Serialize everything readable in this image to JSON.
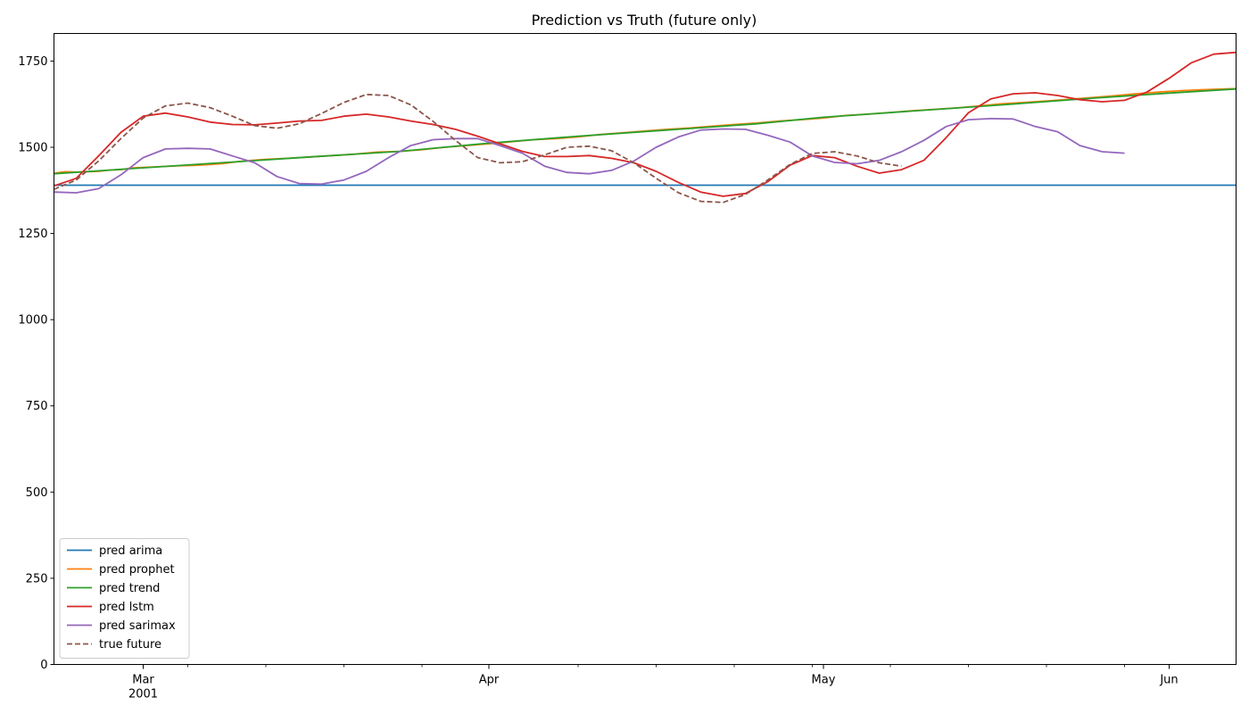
{
  "chart_data": {
    "type": "line",
    "title": "Prediction vs Truth (future only)",
    "xlabel": "",
    "ylabel": "",
    "x_range": [
      "2001-02-21",
      "2001-06-07"
    ],
    "ylim": [
      0,
      1830
    ],
    "y_ticks": [
      0,
      250,
      500,
      750,
      1000,
      1250,
      1500,
      1750
    ],
    "x_major_ticks": [
      {
        "date": "2001-03-01",
        "label": "Mar",
        "sublabel": "2001"
      },
      {
        "date": "2001-04-01",
        "label": "Apr",
        "sublabel": ""
      },
      {
        "date": "2001-05-01",
        "label": "May",
        "sublabel": ""
      },
      {
        "date": "2001-06-01",
        "label": "Jun",
        "sublabel": ""
      }
    ],
    "x_minor_ticks": [
      "2001-03-05",
      "2001-03-12",
      "2001-03-19",
      "2001-03-26",
      "2001-04-09",
      "2001-04-16",
      "2001-04-23",
      "2001-04-30",
      "2001-05-07",
      "2001-05-14",
      "2001-05-21",
      "2001-05-28"
    ],
    "grid": false,
    "legend_position": "lower-left",
    "series": [
      {
        "name": "pred arima",
        "color": "#1f77b4",
        "dashed": false,
        "points": [
          [
            "2001-02-21",
            1390
          ],
          [
            "2001-06-07",
            1390
          ]
        ]
      },
      {
        "name": "pred prophet",
        "color": "#ff7f0e",
        "dashed": false,
        "points": [
          [
            "2001-02-21",
            1425
          ],
          [
            "2001-02-22",
            1429
          ],
          [
            "2001-02-23",
            1428
          ],
          [
            "2001-02-25",
            1430
          ],
          [
            "2001-02-26",
            1434
          ],
          [
            "2001-02-27",
            1435
          ],
          [
            "2001-02-28",
            1440
          ],
          [
            "2001-03-02",
            1443
          ],
          [
            "2001-03-04",
            1446
          ],
          [
            "2001-03-06",
            1448
          ],
          [
            "2001-03-08",
            1452
          ],
          [
            "2001-03-10",
            1460
          ],
          [
            "2001-03-12",
            1465
          ],
          [
            "2001-03-14",
            1468
          ],
          [
            "2001-03-16",
            1472
          ],
          [
            "2001-03-18",
            1476
          ],
          [
            "2001-03-20",
            1480
          ],
          [
            "2001-03-22",
            1486
          ],
          [
            "2001-03-24",
            1488
          ],
          [
            "2001-03-26",
            1493
          ],
          [
            "2001-03-28",
            1500
          ],
          [
            "2001-03-30",
            1505
          ],
          [
            "2001-04-01",
            1510
          ],
          [
            "2001-04-03",
            1516
          ],
          [
            "2001-04-05",
            1522
          ],
          [
            "2001-04-07",
            1525
          ],
          [
            "2001-04-09",
            1530
          ],
          [
            "2001-04-11",
            1537
          ],
          [
            "2001-04-13",
            1542
          ],
          [
            "2001-04-15",
            1547
          ],
          [
            "2001-04-17",
            1552
          ],
          [
            "2001-04-19",
            1556
          ],
          [
            "2001-04-21",
            1561
          ],
          [
            "2001-04-23",
            1566
          ],
          [
            "2001-04-25",
            1570
          ],
          [
            "2001-04-27",
            1576
          ],
          [
            "2001-04-29",
            1580
          ],
          [
            "2001-05-01",
            1585
          ],
          [
            "2001-05-03",
            1592
          ],
          [
            "2001-05-05",
            1596
          ],
          [
            "2001-05-07",
            1601
          ],
          [
            "2001-05-09",
            1606
          ],
          [
            "2001-05-11",
            1610
          ],
          [
            "2001-05-13",
            1614
          ],
          [
            "2001-05-15",
            1620
          ],
          [
            "2001-05-17",
            1626
          ],
          [
            "2001-05-19",
            1630
          ],
          [
            "2001-05-21",
            1634
          ],
          [
            "2001-05-23",
            1639
          ],
          [
            "2001-05-25",
            1644
          ],
          [
            "2001-05-27",
            1649
          ],
          [
            "2001-05-29",
            1655
          ],
          [
            "2001-05-31",
            1660
          ],
          [
            "2001-06-02",
            1664
          ],
          [
            "2001-06-04",
            1667
          ],
          [
            "2001-06-07",
            1670
          ]
        ]
      },
      {
        "name": "pred trend",
        "color": "#2ca02c",
        "dashed": false,
        "points": [
          [
            "2001-02-21",
            1423
          ],
          [
            "2001-02-28",
            1438
          ],
          [
            "2001-03-08",
            1455
          ],
          [
            "2001-03-16",
            1472
          ],
          [
            "2001-03-24",
            1488
          ],
          [
            "2001-04-01",
            1512
          ],
          [
            "2001-04-09",
            1532
          ],
          [
            "2001-04-17",
            1550
          ],
          [
            "2001-04-25",
            1568
          ],
          [
            "2001-05-01",
            1587
          ],
          [
            "2001-05-09",
            1605
          ],
          [
            "2001-05-17",
            1623
          ],
          [
            "2001-05-25",
            1642
          ],
          [
            "2001-06-01",
            1657
          ],
          [
            "2001-06-07",
            1669
          ]
        ]
      },
      {
        "name": "pred lstm",
        "color": "#d62728",
        "dashed": false,
        "points": [
          [
            "2001-02-21",
            1388
          ],
          [
            "2001-02-23",
            1410
          ],
          [
            "2001-02-25",
            1475
          ],
          [
            "2001-02-27",
            1543
          ],
          [
            "2001-03-01",
            1590
          ],
          [
            "2001-03-03",
            1599
          ],
          [
            "2001-03-05",
            1588
          ],
          [
            "2001-03-07",
            1573
          ],
          [
            "2001-03-09",
            1566
          ],
          [
            "2001-03-11",
            1565
          ],
          [
            "2001-03-13",
            1570
          ],
          [
            "2001-03-15",
            1576
          ],
          [
            "2001-03-17",
            1578
          ],
          [
            "2001-03-19",
            1590
          ],
          [
            "2001-03-21",
            1596
          ],
          [
            "2001-03-23",
            1588
          ],
          [
            "2001-03-25",
            1576
          ],
          [
            "2001-03-27",
            1566
          ],
          [
            "2001-03-29",
            1552
          ],
          [
            "2001-03-31",
            1532
          ],
          [
            "2001-04-02",
            1510
          ],
          [
            "2001-04-04",
            1488
          ],
          [
            "2001-04-06",
            1473
          ],
          [
            "2001-04-08",
            1473
          ],
          [
            "2001-04-10",
            1476
          ],
          [
            "2001-04-12",
            1468
          ],
          [
            "2001-04-14",
            1455
          ],
          [
            "2001-04-16",
            1430
          ],
          [
            "2001-04-18",
            1398
          ],
          [
            "2001-04-20",
            1370
          ],
          [
            "2001-04-22",
            1358
          ],
          [
            "2001-04-24",
            1366
          ],
          [
            "2001-04-26",
            1400
          ],
          [
            "2001-04-28",
            1448
          ],
          [
            "2001-04-30",
            1476
          ],
          [
            "2001-05-02",
            1470
          ],
          [
            "2001-05-04",
            1445
          ],
          [
            "2001-05-06",
            1425
          ],
          [
            "2001-05-08",
            1435
          ],
          [
            "2001-05-10",
            1462
          ],
          [
            "2001-05-12",
            1528
          ],
          [
            "2001-05-14",
            1600
          ],
          [
            "2001-05-16",
            1640
          ],
          [
            "2001-05-18",
            1655
          ],
          [
            "2001-05-20",
            1658
          ],
          [
            "2001-05-22",
            1650
          ],
          [
            "2001-05-24",
            1638
          ],
          [
            "2001-05-26",
            1632
          ],
          [
            "2001-05-28",
            1636
          ],
          [
            "2001-05-30",
            1660
          ],
          [
            "2001-06-01",
            1700
          ],
          [
            "2001-06-03",
            1745
          ],
          [
            "2001-06-05",
            1770
          ],
          [
            "2001-06-07",
            1775
          ]
        ]
      },
      {
        "name": "pred sarimax",
        "color": "#9467bd",
        "dashed": false,
        "points": [
          [
            "2001-02-21",
            1370
          ],
          [
            "2001-02-23",
            1368
          ],
          [
            "2001-02-25",
            1380
          ],
          [
            "2001-02-27",
            1420
          ],
          [
            "2001-03-01",
            1470
          ],
          [
            "2001-03-03",
            1495
          ],
          [
            "2001-03-05",
            1497
          ],
          [
            "2001-03-07",
            1495
          ],
          [
            "2001-03-09",
            1475
          ],
          [
            "2001-03-11",
            1455
          ],
          [
            "2001-03-13",
            1415
          ],
          [
            "2001-03-15",
            1395
          ],
          [
            "2001-03-17",
            1393
          ],
          [
            "2001-03-19",
            1405
          ],
          [
            "2001-03-21",
            1430
          ],
          [
            "2001-03-23",
            1470
          ],
          [
            "2001-03-25",
            1505
          ],
          [
            "2001-03-27",
            1522
          ],
          [
            "2001-03-29",
            1525
          ],
          [
            "2001-03-31",
            1525
          ],
          [
            "2001-04-02",
            1505
          ],
          [
            "2001-04-04",
            1483
          ],
          [
            "2001-04-06",
            1445
          ],
          [
            "2001-04-08",
            1427
          ],
          [
            "2001-04-10",
            1423
          ],
          [
            "2001-04-12",
            1433
          ],
          [
            "2001-04-14",
            1460
          ],
          [
            "2001-04-16",
            1500
          ],
          [
            "2001-04-18",
            1530
          ],
          [
            "2001-04-20",
            1550
          ],
          [
            "2001-04-22",
            1553
          ],
          [
            "2001-04-24",
            1552
          ],
          [
            "2001-04-26",
            1535
          ],
          [
            "2001-04-28",
            1515
          ],
          [
            "2001-04-30",
            1475
          ],
          [
            "2001-05-02",
            1456
          ],
          [
            "2001-05-04",
            1452
          ],
          [
            "2001-05-06",
            1462
          ],
          [
            "2001-05-08",
            1487
          ],
          [
            "2001-05-10",
            1520
          ],
          [
            "2001-05-12",
            1560
          ],
          [
            "2001-05-14",
            1580
          ],
          [
            "2001-05-16",
            1583
          ],
          [
            "2001-05-18",
            1582
          ],
          [
            "2001-05-20",
            1560
          ],
          [
            "2001-05-22",
            1545
          ],
          [
            "2001-05-24",
            1505
          ],
          [
            "2001-05-26",
            1487
          ],
          [
            "2001-05-28",
            1483
          ]
        ]
      },
      {
        "name": "true future",
        "color": "#8c564b",
        "dashed": true,
        "points": [
          [
            "2001-02-21",
            1378
          ],
          [
            "2001-02-23",
            1405
          ],
          [
            "2001-02-25",
            1460
          ],
          [
            "2001-02-27",
            1525
          ],
          [
            "2001-03-01",
            1585
          ],
          [
            "2001-03-03",
            1620
          ],
          [
            "2001-03-05",
            1628
          ],
          [
            "2001-03-07",
            1615
          ],
          [
            "2001-03-09",
            1590
          ],
          [
            "2001-03-11",
            1563
          ],
          [
            "2001-03-13",
            1555
          ],
          [
            "2001-03-15",
            1568
          ],
          [
            "2001-03-17",
            1598
          ],
          [
            "2001-03-19",
            1630
          ],
          [
            "2001-03-21",
            1653
          ],
          [
            "2001-03-23",
            1650
          ],
          [
            "2001-03-25",
            1623
          ],
          [
            "2001-03-27",
            1575
          ],
          [
            "2001-03-29",
            1520
          ],
          [
            "2001-03-31",
            1470
          ],
          [
            "2001-04-02",
            1455
          ],
          [
            "2001-04-04",
            1458
          ],
          [
            "2001-04-06",
            1478
          ],
          [
            "2001-04-08",
            1500
          ],
          [
            "2001-04-10",
            1503
          ],
          [
            "2001-04-12",
            1490
          ],
          [
            "2001-04-14",
            1455
          ],
          [
            "2001-04-16",
            1410
          ],
          [
            "2001-04-18",
            1368
          ],
          [
            "2001-04-20",
            1343
          ],
          [
            "2001-04-22",
            1340
          ],
          [
            "2001-04-24",
            1363
          ],
          [
            "2001-04-26",
            1405
          ],
          [
            "2001-04-28",
            1450
          ],
          [
            "2001-04-30",
            1482
          ],
          [
            "2001-05-02",
            1487
          ],
          [
            "2001-05-04",
            1475
          ],
          [
            "2001-05-06",
            1455
          ],
          [
            "2001-05-08",
            1445
          ]
        ]
      }
    ]
  }
}
